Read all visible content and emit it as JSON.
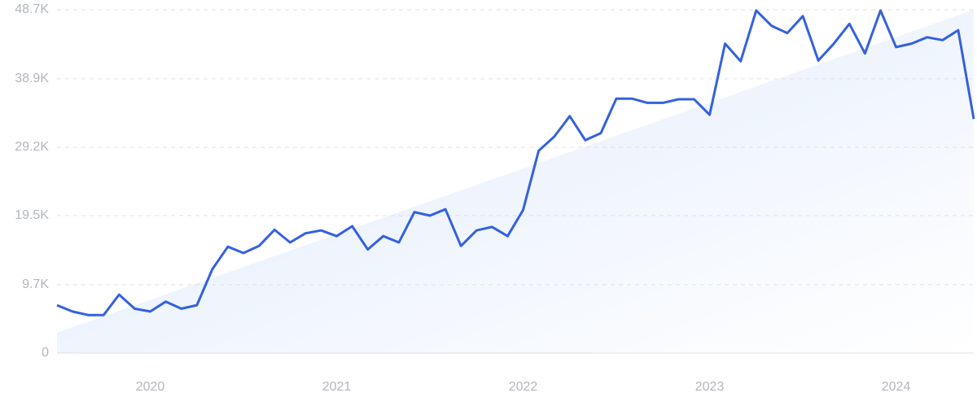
{
  "chart_data": {
    "type": "line",
    "x": [
      2019.5,
      2019.5833,
      2019.6667,
      2019.75,
      2019.8333,
      2019.9167,
      2020,
      2020.0833,
      2020.1667,
      2020.25,
      2020.3333,
      2020.4167,
      2020.5,
      2020.5833,
      2020.6667,
      2020.75,
      2020.8333,
      2020.9167,
      2021,
      2021.0833,
      2021.1667,
      2021.25,
      2021.3333,
      2021.4167,
      2021.5,
      2021.5833,
      2021.6667,
      2021.75,
      2021.8333,
      2021.9167,
      2022,
      2022.0833,
      2022.1667,
      2022.25,
      2022.3333,
      2022.4167,
      2022.5,
      2022.5833,
      2022.6667,
      2022.75,
      2022.8333,
      2022.9167,
      2023,
      2023.0833,
      2023.1667,
      2023.25,
      2023.3333,
      2023.4167,
      2023.5,
      2023.5833,
      2023.6667,
      2023.75,
      2023.8333,
      2023.9167,
      2024,
      2024.0833,
      2024.1667,
      2024.25,
      2024.3333,
      2024.4167
    ],
    "series": [
      {
        "color": "#3461de",
        "values": [
          6800,
          5900,
          5400,
          5400,
          8300,
          6300,
          5900,
          7300,
          6300,
          6800,
          11900,
          15100,
          14200,
          15200,
          17500,
          15700,
          17000,
          17400,
          16600,
          18000,
          14700,
          16600,
          15700,
          20000,
          19500,
          20400,
          15200,
          17400,
          17900,
          16600,
          20300,
          28700,
          30700,
          33600,
          30200,
          31200,
          36100,
          36100,
          35500,
          35500,
          36000,
          36000,
          33800,
          43900,
          41400,
          48600,
          46400,
          45400,
          47800,
          41500,
          43900,
          46700,
          42500,
          48600,
          43400,
          43900,
          44800,
          44400,
          45800,
          33200
        ]
      }
    ],
    "trend": {
      "color": "#e3eefc",
      "values": [
        2900,
        48700
      ]
    },
    "xlim": [
      2019.5,
      2024.4167
    ],
    "xticks": [
      2020,
      2021,
      2022,
      2023,
      2024
    ],
    "ylim": [
      0,
      48700
    ],
    "yticks": [
      0,
      {
        "value": 9700,
        "label": "9.7K"
      },
      {
        "value": 19500,
        "label": "19.5K"
      },
      {
        "value": 29200,
        "label": "29.2K"
      },
      {
        "value": 38900,
        "label": "38.9K"
      },
      {
        "value": 48700,
        "label": "48.7K"
      }
    ],
    "grid": true
  }
}
